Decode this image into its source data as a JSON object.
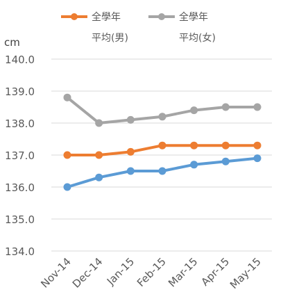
{
  "chart_data": {
    "type": "line",
    "title": "",
    "ylabel": "cm",
    "xlabel": "",
    "categories": [
      "Nov-14",
      "Dec-14",
      "Jan-15",
      "Feb-15",
      "Mar-15",
      "Apr-15",
      "May-15"
    ],
    "ylim": [
      134.0,
      140.0
    ],
    "yticks": [
      "134.0",
      "135.0",
      "136.0",
      "137.0",
      "138.0",
      "139.0",
      "140.0"
    ],
    "grid": "horizontal",
    "legend_position": "top",
    "series": [
      {
        "name_line1": "全學年",
        "name_line2": "平均(男)",
        "color": "#ed7d31",
        "values": [
          137.0,
          137.0,
          137.1,
          137.3,
          137.3,
          137.3,
          137.3
        ]
      },
      {
        "name_line1": "全學年",
        "name_line2": "平均(女)",
        "color": "#a5a5a5",
        "values": [
          138.8,
          138.0,
          138.1,
          138.2,
          138.4,
          138.5,
          138.5
        ]
      },
      {
        "color": "#5b9bd5",
        "values": [
          136.0,
          136.3,
          136.5,
          136.5,
          136.7,
          136.8,
          136.9
        ]
      }
    ]
  }
}
